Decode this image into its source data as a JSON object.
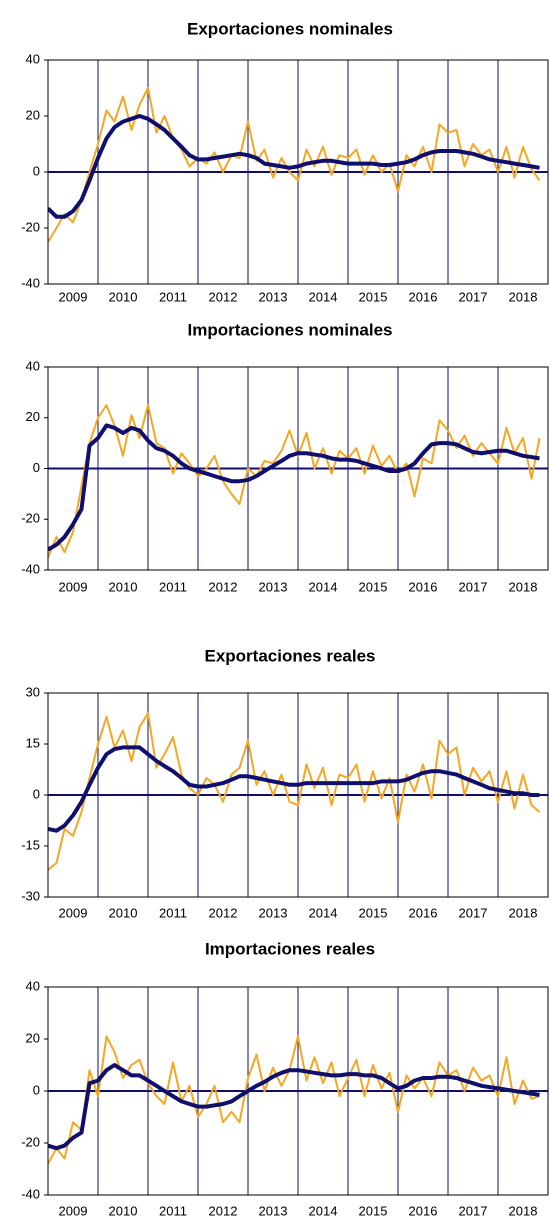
{
  "chart_data": [
    {
      "type": "line",
      "title": "Exportaciones nominales",
      "x": [
        2009,
        2009.17,
        2009.33,
        2009.5,
        2009.67,
        2009.83,
        2010,
        2010.17,
        2010.33,
        2010.5,
        2010.67,
        2010.83,
        2011,
        2011.17,
        2011.33,
        2011.5,
        2011.67,
        2011.83,
        2012,
        2012.17,
        2012.33,
        2012.5,
        2012.67,
        2012.83,
        2013,
        2013.17,
        2013.33,
        2013.5,
        2013.67,
        2013.83,
        2014,
        2014.17,
        2014.33,
        2014.5,
        2014.67,
        2014.83,
        2015,
        2015.17,
        2015.33,
        2015.5,
        2015.67,
        2015.83,
        2016,
        2016.17,
        2016.33,
        2016.5,
        2016.67,
        2016.83,
        2017,
        2017.17,
        2017.33,
        2017.5,
        2017.67,
        2017.83,
        2018,
        2018.17,
        2018.33,
        2018.5,
        2018.67,
        2018.83
      ],
      "series": [
        {
          "color": "#f5a623",
          "width": 2,
          "values": [
            -25,
            -20,
            -15,
            -18,
            -10,
            0,
            10,
            22,
            18,
            27,
            15,
            24,
            30,
            14,
            20,
            12,
            8,
            2,
            5,
            3,
            7,
            0,
            6,
            5,
            18,
            4,
            8,
            -2,
            5,
            0,
            -3,
            8,
            2,
            9,
            -1,
            6,
            5,
            8,
            -1,
            6,
            0,
            3,
            -7,
            6,
            2,
            9,
            0,
            17,
            14,
            15,
            2,
            10,
            6,
            8,
            0,
            9,
            -2,
            9,
            1,
            -3
          ]
        },
        {
          "color": "#0f0f6e",
          "width": 4,
          "values": [
            -13,
            -16,
            -16,
            -14,
            -10,
            -3,
            5,
            12,
            16,
            18,
            19,
            20,
            19,
            17,
            15,
            12,
            9,
            6,
            4.5,
            4.5,
            5,
            5.5,
            6,
            6.5,
            6,
            5,
            3,
            2.5,
            2,
            1.5,
            2,
            3,
            3.5,
            4,
            4,
            3.5,
            3,
            3,
            3,
            3,
            2.5,
            2.5,
            3,
            3.5,
            4.5,
            6,
            7,
            7.5,
            7.5,
            7.5,
            7,
            6.5,
            5.5,
            4.5,
            4,
            3.5,
            3,
            2.5,
            2,
            1.5
          ]
        }
      ],
      "xlim": [
        2009,
        2019
      ],
      "xticks": [
        {
          "value": 2009.5,
          "label": "2009"
        },
        {
          "value": 2010.5,
          "label": "2010"
        },
        {
          "value": 2011.5,
          "label": "2011"
        },
        {
          "value": 2012.5,
          "label": "2012"
        },
        {
          "value": 2013.5,
          "label": "2013"
        },
        {
          "value": 2014.5,
          "label": "2014"
        },
        {
          "value": 2015.5,
          "label": "2015"
        },
        {
          "value": 2016.5,
          "label": "2016"
        },
        {
          "value": 2017.5,
          "label": "2017"
        },
        {
          "value": 2018.5,
          "label": "2018"
        }
      ],
      "xgrid": [
        2010,
        2011,
        2012,
        2013,
        2014,
        2015,
        2016,
        2017,
        2018
      ],
      "ylim": [
        -40,
        40
      ],
      "yticks": [
        -40,
        -20,
        0,
        20,
        40
      ]
    },
    {
      "type": "line",
      "title": "Importaciones nominales",
      "x": [
        2009,
        2009.17,
        2009.33,
        2009.5,
        2009.67,
        2009.83,
        2010,
        2010.17,
        2010.33,
        2010.5,
        2010.67,
        2010.83,
        2011,
        2011.17,
        2011.33,
        2011.5,
        2011.67,
        2011.83,
        2012,
        2012.17,
        2012.33,
        2012.5,
        2012.67,
        2012.83,
        2013,
        2013.17,
        2013.33,
        2013.5,
        2013.67,
        2013.83,
        2014,
        2014.17,
        2014.33,
        2014.5,
        2014.67,
        2014.83,
        2015,
        2015.17,
        2015.33,
        2015.5,
        2015.67,
        2015.83,
        2016,
        2016.17,
        2016.33,
        2016.5,
        2016.67,
        2016.83,
        2017,
        2017.17,
        2017.33,
        2017.5,
        2017.67,
        2017.83,
        2018,
        2018.17,
        2018.33,
        2018.5,
        2018.67,
        2018.83
      ],
      "series": [
        {
          "color": "#f5a623",
          "width": 2,
          "values": [
            -35,
            -27,
            -33,
            -25,
            -7,
            10,
            20,
            25,
            17,
            5,
            21,
            12,
            25,
            10,
            8,
            -2,
            6,
            2,
            -3,
            0,
            5,
            -5,
            -10,
            -14,
            0,
            -3,
            3,
            2,
            7,
            15,
            5,
            14,
            0,
            8,
            -2,
            7,
            4,
            8,
            -2,
            9,
            1,
            5,
            -2,
            2,
            -11,
            4,
            2,
            19,
            15,
            8,
            13,
            5,
            10,
            6,
            2,
            16,
            6,
            12,
            -4,
            12
          ]
        },
        {
          "color": "#0f0f6e",
          "width": 4,
          "values": [
            -32,
            -30,
            -27,
            -22,
            -16,
            9,
            12,
            17,
            16,
            14,
            16,
            15,
            11,
            8,
            7,
            5,
            2,
            0,
            -1,
            -2,
            -3,
            -4,
            -5,
            -5,
            -4.5,
            -3,
            -1,
            1,
            3,
            5,
            6,
            6,
            5.5,
            5,
            4,
            3.5,
            3.5,
            3,
            2,
            1,
            0,
            -1,
            -1,
            0,
            2,
            6,
            9.5,
            10,
            10,
            9.5,
            8,
            6.5,
            6,
            6.5,
            7,
            7,
            6,
            5,
            4.5,
            4
          ]
        }
      ],
      "xlim": [
        2009,
        2019
      ],
      "xticks": [
        {
          "value": 2009.5,
          "label": "2009"
        },
        {
          "value": 2010.5,
          "label": "2010"
        },
        {
          "value": 2011.5,
          "label": "2011"
        },
        {
          "value": 2012.5,
          "label": "2012"
        },
        {
          "value": 2013.5,
          "label": "2013"
        },
        {
          "value": 2014.5,
          "label": "2014"
        },
        {
          "value": 2015.5,
          "label": "2015"
        },
        {
          "value": 2016.5,
          "label": "2016"
        },
        {
          "value": 2017.5,
          "label": "2017"
        },
        {
          "value": 2018.5,
          "label": "2018"
        }
      ],
      "xgrid": [
        2010,
        2011,
        2012,
        2013,
        2014,
        2015,
        2016,
        2017,
        2018
      ],
      "ylim": [
        -40,
        40
      ],
      "yticks": [
        -40,
        -20,
        0,
        20,
        40
      ]
    },
    {
      "type": "line",
      "title": "Exportaciones reales",
      "x": [
        2009,
        2009.17,
        2009.33,
        2009.5,
        2009.67,
        2009.83,
        2010,
        2010.17,
        2010.33,
        2010.5,
        2010.67,
        2010.83,
        2011,
        2011.17,
        2011.33,
        2011.5,
        2011.67,
        2011.83,
        2012,
        2012.17,
        2012.33,
        2012.5,
        2012.67,
        2012.83,
        2013,
        2013.17,
        2013.33,
        2013.5,
        2013.67,
        2013.83,
        2014,
        2014.17,
        2014.33,
        2014.5,
        2014.67,
        2014.83,
        2015,
        2015.17,
        2015.33,
        2015.5,
        2015.67,
        2015.83,
        2016,
        2016.17,
        2016.33,
        2016.5,
        2016.67,
        2016.83,
        2017,
        2017.17,
        2017.33,
        2017.5,
        2017.67,
        2017.83,
        2018,
        2018.17,
        2018.33,
        2018.5,
        2018.67,
        2018.83
      ],
      "series": [
        {
          "color": "#f5a623",
          "width": 2,
          "values": [
            -22,
            -20,
            -10,
            -12,
            -5,
            5,
            15,
            23,
            14,
            19,
            10,
            20,
            24,
            8,
            12,
            17,
            6,
            2,
            0,
            5,
            3,
            -2,
            6,
            8,
            16,
            3,
            7,
            0,
            6,
            -2,
            -3,
            9,
            2,
            8,
            -3,
            6,
            5,
            9,
            -2,
            7,
            -1,
            5,
            -8,
            6,
            1,
            9,
            -1,
            16,
            12,
            14,
            0,
            8,
            4,
            7,
            -2,
            7,
            -4,
            6,
            -3,
            -5
          ]
        },
        {
          "color": "#0f0f6e",
          "width": 4,
          "values": [
            -10,
            -10.5,
            -9,
            -6,
            -2,
            3,
            8,
            12,
            13.5,
            14,
            14,
            14,
            12,
            10,
            8.5,
            7,
            5,
            3,
            2.5,
            2.5,
            3,
            3.5,
            4.5,
            5.5,
            5.5,
            5,
            4.5,
            4,
            3.5,
            3,
            3,
            3.5,
            3.5,
            3.5,
            3.5,
            3.5,
            3.5,
            3.5,
            3.5,
            3.5,
            4,
            4,
            4,
            4.5,
            5.5,
            6.5,
            7,
            7,
            6.5,
            6,
            5,
            4,
            3,
            2,
            1.5,
            1,
            0.5,
            0.5,
            0,
            0
          ]
        }
      ],
      "xlim": [
        2009,
        2019
      ],
      "xticks": [
        {
          "value": 2009.5,
          "label": "2009"
        },
        {
          "value": 2010.5,
          "label": "2010"
        },
        {
          "value": 2011.5,
          "label": "2011"
        },
        {
          "value": 2012.5,
          "label": "2012"
        },
        {
          "value": 2013.5,
          "label": "2013"
        },
        {
          "value": 2014.5,
          "label": "2014"
        },
        {
          "value": 2015.5,
          "label": "2015"
        },
        {
          "value": 2016.5,
          "label": "2016"
        },
        {
          "value": 2017.5,
          "label": "2017"
        },
        {
          "value": 2018.5,
          "label": "2018"
        }
      ],
      "xgrid": [
        2010,
        2011,
        2012,
        2013,
        2014,
        2015,
        2016,
        2017,
        2018
      ],
      "ylim": [
        -30,
        30
      ],
      "yticks": [
        -30,
        -15,
        0,
        15,
        30
      ]
    },
    {
      "type": "line",
      "title": "Importaciones reales",
      "x": [
        2009,
        2009.17,
        2009.33,
        2009.5,
        2009.67,
        2009.83,
        2010,
        2010.17,
        2010.33,
        2010.5,
        2010.67,
        2010.83,
        2011,
        2011.17,
        2011.33,
        2011.5,
        2011.67,
        2011.83,
        2012,
        2012.17,
        2012.33,
        2012.5,
        2012.67,
        2012.83,
        2013,
        2013.17,
        2013.33,
        2013.5,
        2013.67,
        2013.83,
        2014,
        2014.17,
        2014.33,
        2014.5,
        2014.67,
        2014.83,
        2015,
        2015.17,
        2015.33,
        2015.5,
        2015.67,
        2015.83,
        2016,
        2016.17,
        2016.33,
        2016.5,
        2016.67,
        2016.83,
        2017,
        2017.17,
        2017.33,
        2017.5,
        2017.67,
        2017.83,
        2018,
        2018.17,
        2018.33,
        2018.5,
        2018.67,
        2018.83
      ],
      "series": [
        {
          "color": "#f5a623",
          "width": 2,
          "values": [
            -28,
            -22,
            -26,
            -12,
            -15,
            8,
            -2,
            21,
            15,
            5,
            10,
            12,
            3,
            -2,
            -5,
            11,
            -4,
            2,
            -10,
            -5,
            2,
            -12,
            -8,
            -12,
            5,
            14,
            0,
            9,
            2,
            8,
            21,
            4,
            13,
            3,
            11,
            -2,
            5,
            12,
            -2,
            10,
            1,
            7,
            -8,
            6,
            1,
            5,
            -2,
            11,
            6,
            8,
            0,
            9,
            4,
            6,
            -2,
            13,
            -5,
            4,
            -3,
            -2
          ]
        },
        {
          "color": "#0f0f6e",
          "width": 4,
          "values": [
            -21,
            -22,
            -21,
            -18,
            -16,
            3,
            4,
            8,
            10,
            8,
            6,
            6,
            4,
            2,
            0,
            -2,
            -4,
            -5,
            -6,
            -6,
            -5.5,
            -5,
            -4,
            -2,
            0,
            2,
            3.5,
            5.5,
            7,
            8,
            8,
            7.5,
            7,
            6.5,
            6,
            6,
            6.5,
            6.5,
            6,
            6,
            5,
            3,
            1,
            2,
            4,
            5,
            5,
            5.5,
            5.5,
            5,
            4,
            3,
            2,
            1.5,
            1,
            0.5,
            0,
            -0.5,
            -1,
            -1.5
          ]
        }
      ],
      "xlim": [
        2009,
        2019
      ],
      "xticks": [
        {
          "value": 2009.5,
          "label": "2009"
        },
        {
          "value": 2010.5,
          "label": "2010"
        },
        {
          "value": 2011.5,
          "label": "2011"
        },
        {
          "value": 2012.5,
          "label": "2012"
        },
        {
          "value": 2013.5,
          "label": "2013"
        },
        {
          "value": 2014.5,
          "label": "2014"
        },
        {
          "value": 2015.5,
          "label": "2015"
        },
        {
          "value": 2016.5,
          "label": "2016"
        },
        {
          "value": 2017.5,
          "label": "2017"
        },
        {
          "value": 2018.5,
          "label": "2018"
        }
      ],
      "xgrid": [
        2010,
        2011,
        2012,
        2013,
        2014,
        2015,
        2016,
        2017,
        2018
      ],
      "ylim": [
        -40,
        40
      ],
      "yticks": [
        -40,
        -20,
        0,
        20,
        40
      ]
    }
  ]
}
